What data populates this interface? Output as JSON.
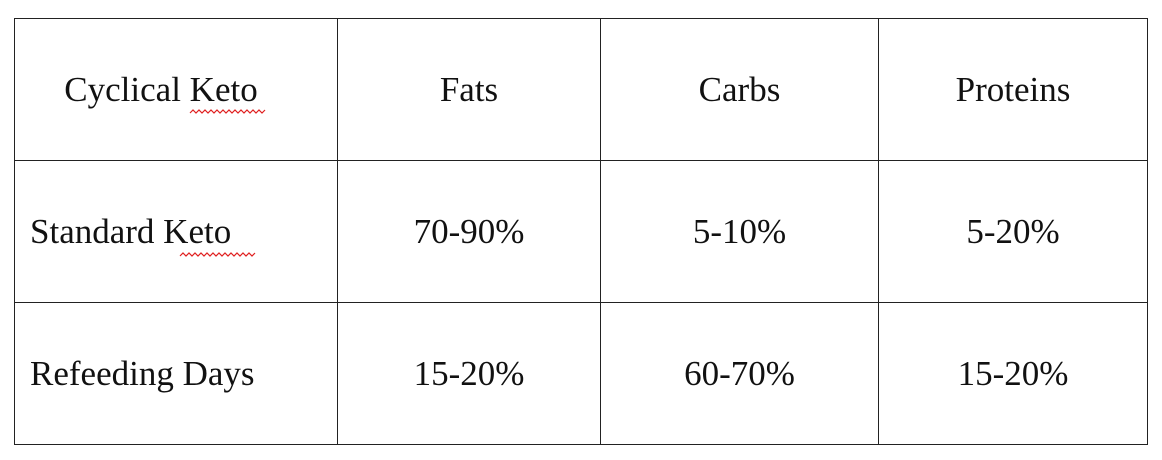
{
  "table": {
    "header": [
      "Cyclical Keto",
      "Fats",
      "Carbs",
      "Proteins"
    ],
    "rows": [
      [
        "Standard Keto",
        "70-90%",
        "5-10%",
        "5-20%"
      ],
      [
        "Refeeding Days",
        "15-20%",
        "60-70%",
        "15-20%"
      ]
    ]
  }
}
